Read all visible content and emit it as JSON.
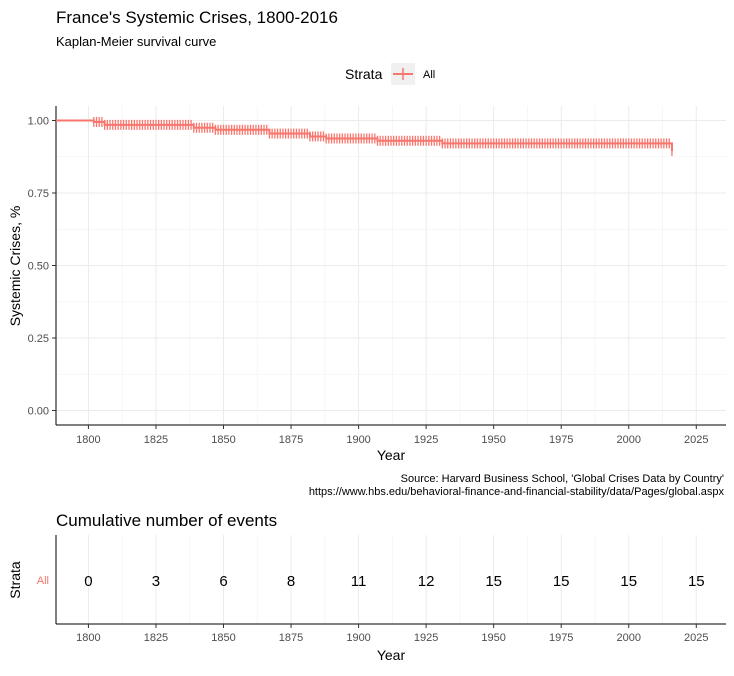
{
  "chart_data": [
    {
      "type": "line",
      "title": "France's Systemic Crises, 1800-2016",
      "subtitle": "Kaplan-Meier survival curve",
      "xlabel": "Year",
      "ylabel": "Systemic Crises, %",
      "xlim": [
        1788,
        2036
      ],
      "ylim": [
        -0.05,
        1.05
      ],
      "x_ticks": [
        1800,
        1825,
        1850,
        1875,
        1900,
        1925,
        1950,
        1975,
        2000,
        2025
      ],
      "y_ticks": [
        0.0,
        0.25,
        0.5,
        0.75,
        1.0
      ],
      "y_tick_labels": [
        "0.00",
        "0.25",
        "0.50",
        "0.75",
        "1.00"
      ],
      "legend": {
        "title": "Strata",
        "position": "top",
        "entries": [
          "All"
        ]
      },
      "grid": true,
      "color": "#F8766D",
      "series": [
        {
          "name": "All",
          "step": true,
          "x": [
            1788,
            1802,
            1806,
            1839,
            1847,
            1867,
            1882,
            1888,
            1907,
            1931,
            2016
          ],
          "y": [
            1.0,
            0.995,
            0.985,
            0.975,
            0.968,
            0.955,
            0.945,
            0.938,
            0.93,
            0.921,
            0.895
          ],
          "censor_range": [
            1802,
            2016
          ],
          "censor_step": 1
        }
      ],
      "source_note": [
        "Source: Harvard Business School, 'Global Crises Data by Country'",
        "https://www.hbs.edu/behavioral-finance-and-financial-stability/data/Pages/global.aspx"
      ]
    },
    {
      "type": "table",
      "title": "Cumulative number of events",
      "xlabel": "Year",
      "ylabel": "Strata",
      "row_label": "All",
      "x": [
        1800,
        1825,
        1850,
        1875,
        1900,
        1925,
        1950,
        1975,
        2000,
        2025
      ],
      "values": [
        0,
        3,
        6,
        8,
        11,
        12,
        15,
        15,
        15,
        15
      ]
    }
  ]
}
